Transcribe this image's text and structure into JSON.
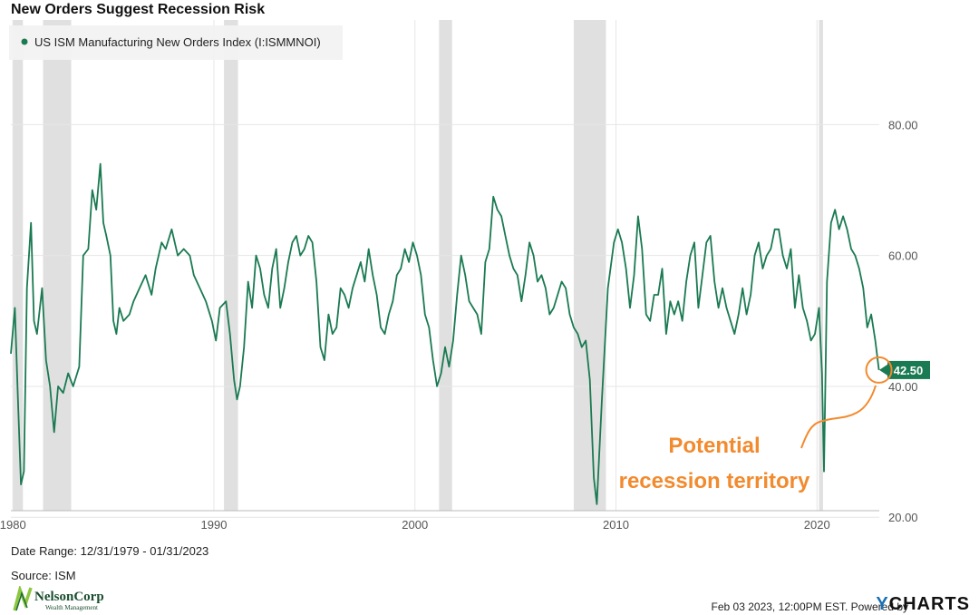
{
  "title": "New Orders Suggest Recession Risk",
  "colors": {
    "series": "#1a7a52",
    "recession_band": "#e0e0e0",
    "annotation": "#f28a2e",
    "grid": "#e6e6e6"
  },
  "chart_data": {
    "type": "line",
    "series": [
      {
        "name": "US ISM Manufacturing New Orders Index (I:ISMMNOI)",
        "points": [
          [
            1979.9,
            45
          ],
          [
            1980.1,
            52
          ],
          [
            1980.25,
            38
          ],
          [
            1980.4,
            25
          ],
          [
            1980.55,
            27
          ],
          [
            1980.7,
            55
          ],
          [
            1980.9,
            65
          ],
          [
            1981.05,
            50
          ],
          [
            1981.2,
            48
          ],
          [
            1981.45,
            55
          ],
          [
            1981.65,
            44
          ],
          [
            1981.85,
            40
          ],
          [
            1982.05,
            33
          ],
          [
            1982.25,
            40
          ],
          [
            1982.5,
            39
          ],
          [
            1982.75,
            42
          ],
          [
            1983.0,
            40
          ],
          [
            1983.3,
            43
          ],
          [
            1983.5,
            60
          ],
          [
            1983.75,
            61
          ],
          [
            1983.95,
            70
          ],
          [
            1984.15,
            67
          ],
          [
            1984.35,
            74
          ],
          [
            1984.5,
            65
          ],
          [
            1984.65,
            63
          ],
          [
            1984.85,
            60
          ],
          [
            1985.0,
            50
          ],
          [
            1985.15,
            48
          ],
          [
            1985.3,
            52
          ],
          [
            1985.5,
            50
          ],
          [
            1985.8,
            51
          ],
          [
            1986.0,
            53
          ],
          [
            1986.3,
            55
          ],
          [
            1986.6,
            57
          ],
          [
            1986.9,
            54
          ],
          [
            1987.1,
            58
          ],
          [
            1987.4,
            62
          ],
          [
            1987.6,
            61
          ],
          [
            1987.9,
            64
          ],
          [
            1988.2,
            60
          ],
          [
            1988.5,
            61
          ],
          [
            1988.8,
            60
          ],
          [
            1989.0,
            57
          ],
          [
            1989.3,
            55
          ],
          [
            1989.6,
            53
          ],
          [
            1989.9,
            50
          ],
          [
            1990.1,
            47
          ],
          [
            1990.3,
            52
          ],
          [
            1990.6,
            53
          ],
          [
            1990.8,
            48
          ],
          [
            1991.0,
            41
          ],
          [
            1991.15,
            38
          ],
          [
            1991.3,
            40
          ],
          [
            1991.5,
            46
          ],
          [
            1991.7,
            56
          ],
          [
            1991.9,
            52
          ],
          [
            1992.1,
            60
          ],
          [
            1992.3,
            58
          ],
          [
            1992.5,
            54
          ],
          [
            1992.7,
            52
          ],
          [
            1992.9,
            58
          ],
          [
            1993.1,
            61
          ],
          [
            1993.3,
            52
          ],
          [
            1993.5,
            55
          ],
          [
            1993.7,
            59
          ],
          [
            1993.9,
            62
          ],
          [
            1994.1,
            63
          ],
          [
            1994.3,
            60
          ],
          [
            1994.5,
            61
          ],
          [
            1994.7,
            63
          ],
          [
            1994.9,
            62
          ],
          [
            1995.1,
            56
          ],
          [
            1995.3,
            46
          ],
          [
            1995.5,
            44
          ],
          [
            1995.7,
            51
          ],
          [
            1995.9,
            48
          ],
          [
            1996.1,
            49
          ],
          [
            1996.3,
            55
          ],
          [
            1996.5,
            54
          ],
          [
            1996.7,
            52
          ],
          [
            1996.9,
            55
          ],
          [
            1997.1,
            57
          ],
          [
            1997.3,
            59
          ],
          [
            1997.5,
            56
          ],
          [
            1997.7,
            61
          ],
          [
            1997.9,
            57
          ],
          [
            1998.1,
            54
          ],
          [
            1998.3,
            49
          ],
          [
            1998.5,
            48
          ],
          [
            1998.7,
            51
          ],
          [
            1998.9,
            53
          ],
          [
            1999.1,
            57
          ],
          [
            1999.3,
            58
          ],
          [
            1999.5,
            61
          ],
          [
            1999.7,
            59
          ],
          [
            1999.9,
            62
          ],
          [
            2000.1,
            60
          ],
          [
            2000.3,
            57
          ],
          [
            2000.5,
            51
          ],
          [
            2000.7,
            49
          ],
          [
            2000.9,
            44
          ],
          [
            2001.1,
            40
          ],
          [
            2001.3,
            42
          ],
          [
            2001.5,
            46
          ],
          [
            2001.7,
            43
          ],
          [
            2001.9,
            47
          ],
          [
            2002.1,
            54
          ],
          [
            2002.3,
            60
          ],
          [
            2002.5,
            57
          ],
          [
            2002.7,
            53
          ],
          [
            2002.9,
            52
          ],
          [
            2003.1,
            51
          ],
          [
            2003.3,
            48
          ],
          [
            2003.5,
            59
          ],
          [
            2003.7,
            61
          ],
          [
            2003.9,
            69
          ],
          [
            2004.1,
            67
          ],
          [
            2004.3,
            66
          ],
          [
            2004.5,
            63
          ],
          [
            2004.7,
            60
          ],
          [
            2004.9,
            58
          ],
          [
            2005.1,
            57
          ],
          [
            2005.3,
            53
          ],
          [
            2005.5,
            57
          ],
          [
            2005.7,
            62
          ],
          [
            2005.9,
            60
          ],
          [
            2006.1,
            56
          ],
          [
            2006.3,
            57
          ],
          [
            2006.5,
            55
          ],
          [
            2006.7,
            51
          ],
          [
            2006.9,
            52
          ],
          [
            2007.1,
            54
          ],
          [
            2007.3,
            56
          ],
          [
            2007.5,
            55
          ],
          [
            2007.7,
            51
          ],
          [
            2007.9,
            49
          ],
          [
            2008.1,
            48
          ],
          [
            2008.3,
            46
          ],
          [
            2008.5,
            47
          ],
          [
            2008.7,
            41
          ],
          [
            2008.9,
            26
          ],
          [
            2009.05,
            22
          ],
          [
            2009.3,
            38
          ],
          [
            2009.6,
            55
          ],
          [
            2009.9,
            62
          ],
          [
            2010.1,
            64
          ],
          [
            2010.3,
            62
          ],
          [
            2010.5,
            58
          ],
          [
            2010.7,
            52
          ],
          [
            2010.9,
            57
          ],
          [
            2011.1,
            66
          ],
          [
            2011.3,
            61
          ],
          [
            2011.5,
            51
          ],
          [
            2011.7,
            50
          ],
          [
            2011.9,
            54
          ],
          [
            2012.1,
            54
          ],
          [
            2012.3,
            58
          ],
          [
            2012.5,
            48
          ],
          [
            2012.7,
            53
          ],
          [
            2012.9,
            51
          ],
          [
            2013.1,
            53
          ],
          [
            2013.3,
            50
          ],
          [
            2013.5,
            56
          ],
          [
            2013.7,
            60
          ],
          [
            2013.9,
            62
          ],
          [
            2014.1,
            52
          ],
          [
            2014.3,
            57
          ],
          [
            2014.5,
            62
          ],
          [
            2014.7,
            63
          ],
          [
            2014.9,
            56
          ],
          [
            2015.1,
            52
          ],
          [
            2015.3,
            55
          ],
          [
            2015.5,
            52
          ],
          [
            2015.7,
            50
          ],
          [
            2015.9,
            48
          ],
          [
            2016.1,
            51
          ],
          [
            2016.3,
            55
          ],
          [
            2016.5,
            51
          ],
          [
            2016.7,
            54
          ],
          [
            2016.9,
            60
          ],
          [
            2017.1,
            62
          ],
          [
            2017.3,
            58
          ],
          [
            2017.5,
            60
          ],
          [
            2017.7,
            61
          ],
          [
            2017.9,
            64
          ],
          [
            2018.1,
            64
          ],
          [
            2018.3,
            60
          ],
          [
            2018.5,
            58
          ],
          [
            2018.7,
            61
          ],
          [
            2018.9,
            52
          ],
          [
            2019.1,
            57
          ],
          [
            2019.3,
            52
          ],
          [
            2019.5,
            50
          ],
          [
            2019.7,
            47
          ],
          [
            2019.9,
            48
          ],
          [
            2020.1,
            52
          ],
          [
            2020.25,
            42
          ],
          [
            2020.35,
            27
          ],
          [
            2020.5,
            56
          ],
          [
            2020.7,
            65
          ],
          [
            2020.9,
            67
          ],
          [
            2021.1,
            64
          ],
          [
            2021.3,
            66
          ],
          [
            2021.5,
            64
          ],
          [
            2021.7,
            61
          ],
          [
            2021.9,
            60
          ],
          [
            2022.1,
            58
          ],
          [
            2022.3,
            55
          ],
          [
            2022.5,
            49
          ],
          [
            2022.7,
            51
          ],
          [
            2022.9,
            47
          ],
          [
            2023.08,
            42.5
          ]
        ]
      }
    ],
    "recessions": [
      [
        1980.0,
        1980.5
      ],
      [
        1981.5,
        1982.9
      ],
      [
        1990.5,
        1991.2
      ],
      [
        2001.2,
        2001.85
      ],
      [
        2007.9,
        2009.5
      ],
      [
        2020.1,
        2020.3
      ]
    ],
    "xlim": [
      1979.9,
      2023.1
    ],
    "ylim": [
      21,
      96
    ],
    "y_ticks": [
      {
        "value": 80,
        "label": "80.00"
      },
      {
        "value": 60,
        "label": "60.00"
      },
      {
        "value": 40,
        "label": "40.00"
      },
      {
        "value": 20,
        "label": "20.00"
      }
    ],
    "x_ticks": [
      {
        "value": 1980,
        "label": "1980"
      },
      {
        "value": 1990,
        "label": "1990"
      },
      {
        "value": 2000,
        "label": "2000"
      },
      {
        "value": 2010,
        "label": "2010"
      },
      {
        "value": 2020,
        "label": "2020"
      }
    ],
    "last_value_label": "42.50",
    "annotation": {
      "lines": [
        "Potential",
        "recession territory"
      ]
    },
    "legend_placement": "top-left",
    "grid": true
  },
  "footer": {
    "date_range": "Date Range: 12/31/1979 - 01/31/2023",
    "source": "Source: ISM",
    "timestamp": "Feb 03 2023, 12:00PM EST.  Powered by",
    "brand": "CHARTS",
    "brand_prefix": "Y",
    "logo_text": "NelsonCorp",
    "logo_subtext": "Wealth Management"
  }
}
